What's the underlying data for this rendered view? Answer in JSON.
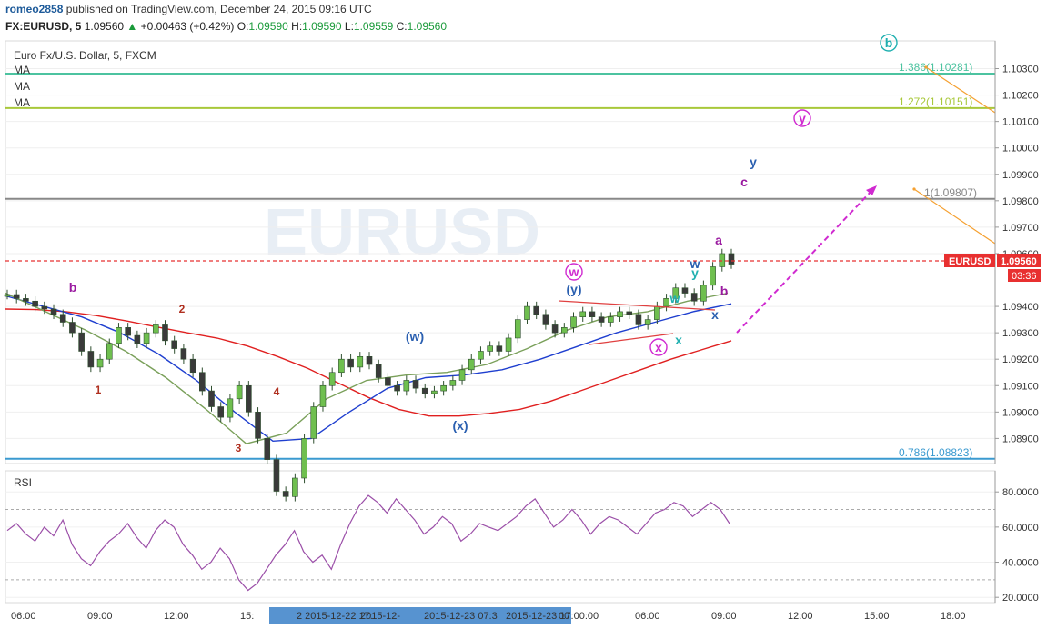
{
  "header": {
    "user": "romeo2858",
    "published": "published on TradingView.com, December 24, 2015 09:16 UTC",
    "symbol": "FX:EURUSD, 5",
    "last": "1.09560",
    "change": "+0.00463 (+0.42%)",
    "o_label": "O:",
    "o": "1.09590",
    "h_label": "H:",
    "h": "1.09590",
    "l_label": "L:",
    "l": "1.09559",
    "c_label": "C:",
    "c": "1.09560"
  },
  "chart_title": "Euro Fx/U.S. Dollar, 5, FXCM",
  "indicators": [
    "MA",
    "MA",
    "MA"
  ],
  "rsi_label": "RSI",
  "watermark": "EURUSD",
  "price_badge": {
    "symbol": "EURUSD",
    "value": "1.09560",
    "timer": "03:36"
  },
  "colors": {
    "candle": "#3b7a2a",
    "ma_red": "#e02020",
    "ma_blue": "#1f3fcf",
    "ma_green": "#7aa05a",
    "fib_teal": "#4cc3a0",
    "fib_lime": "#a8c83a",
    "fib_gray": "#888888",
    "fib_blue": "#3a9ad0",
    "rsi": "#9b4fa8",
    "magenta": "#d02ad0",
    "orange": "#f5a030",
    "wave_purple": "#9a1aa0",
    "wave_blue": "#2a5fb0",
    "wave_teal": "#20b0b0",
    "wave_red": "#b03020"
  },
  "fib_levels": [
    {
      "label": "1.386(1.10281)",
      "price": 1.10281
    },
    {
      "label": "1.272(1.10151)",
      "price": 1.10151
    },
    {
      "label": "1(1.09807)",
      "price": 1.09807
    },
    {
      "label": "0.786(1.08823)",
      "price": 1.08823
    }
  ],
  "wave_labels": [
    {
      "text": "b",
      "kind": "purple",
      "x_time": "08:00",
      "price": 1.09625
    },
    {
      "text": "2",
      "kind": "red",
      "x_time": "11:50",
      "price": 1.09335
    },
    {
      "text": "1",
      "kind": "red",
      "x_time": "08:40",
      "price": 1.09155
    },
    {
      "text": "4",
      "kind": "red",
      "x_time": "15:00",
      "price": 1.0912
    },
    {
      "text": "3",
      "kind": "red",
      "x_time": "13:50",
      "price": 1.08845
    },
    {
      "text": "(w)",
      "kind": "blue",
      "x_time": "07:40+1",
      "price": 1.0929
    },
    {
      "text": "(x)",
      "kind": "blue",
      "x_time": "06:00+1",
      "price": 1.0898
    },
    {
      "text": "(y)",
      "kind": "blue",
      "x_time": "00:00+2",
      "price": 1.0949
    },
    {
      "text": "w",
      "kind": "purple-circle",
      "x_time": "00:00+2",
      "price": 1.09525
    },
    {
      "text": "x",
      "kind": "purple-circle",
      "x_time": "06:00+2",
      "price": 1.0928
    },
    {
      "text": "w",
      "kind": "teal",
      "x_time": "06:30+2",
      "price": 1.0946
    },
    {
      "text": "x",
      "kind": "teal",
      "x_time": "06:50+2",
      "price": 1.0931
    },
    {
      "text": "y",
      "kind": "teal",
      "x_time": "07:40+2",
      "price": 1.0957
    },
    {
      "text": "w",
      "kind": "blue",
      "x_time": "07:40+2",
      "price": 1.096
    },
    {
      "text": "x",
      "kind": "blue",
      "x_time": "08:50+2",
      "price": 1.0937
    },
    {
      "text": "a",
      "kind": "purple",
      "x_time": "08:50+2",
      "price": 1.09665
    },
    {
      "text": "b",
      "kind": "purple",
      "x_time": "09:00+2",
      "price": 1.09485
    },
    {
      "text": "c",
      "kind": "purple",
      "x_time": "10:00+2",
      "price": 1.0983
    },
    {
      "text": "y",
      "kind": "blue",
      "x_time": "10:20+2",
      "price": 1.09925
    },
    {
      "text": "y",
      "kind": "purple-circle",
      "x_time": "12:00+2",
      "price": 1.1007
    },
    {
      "text": "b",
      "kind": "teal-circle",
      "x_time": "15:30+2",
      "price": 1.1039
    }
  ],
  "chart_data": {
    "type": "line",
    "title": "Euro Fx/U.S. Dollar, 5, FXCM",
    "price_axis": {
      "ticks": [
        "1.10300",
        "1.10200",
        "1.10100",
        "1.10000",
        "1.09900",
        "1.09800",
        "1.09700",
        "1.09600",
        "1.09400",
        "1.09300",
        "1.09200",
        "1.09100",
        "1.09000",
        "1.08900"
      ],
      "ylim": [
        1.08805,
        1.10405
      ]
    },
    "rsi_axis": {
      "ticks": [
        "80.0000",
        "60.0000",
        "40.0000",
        "20.0000"
      ],
      "ylim": [
        17,
        92
      ],
      "bands": [
        70,
        30
      ]
    },
    "time_axis": {
      "labels": [
        "06:00",
        "09:00",
        "12:00",
        "15:",
        "2 2015-12-22 17:",
        "2015-12-",
        "2015-12-23 07:3",
        "2015-12-23 17:00:00",
        "00",
        "06:00",
        "09:00",
        "12:00",
        "15:00",
        "18:00"
      ]
    },
    "price_series": [
      1.09445,
      1.0943,
      1.0942,
      1.094,
      1.0939,
      1.0937,
      1.0934,
      1.093,
      1.0923,
      1.0917,
      1.092,
      1.0926,
      1.0932,
      1.0929,
      1.0926,
      1.093,
      1.0933,
      1.0927,
      1.0924,
      1.092,
      1.0915,
      1.0908,
      1.0902,
      1.0898,
      1.0905,
      1.091,
      1.09,
      1.089,
      1.0882,
      1.087,
      1.0868,
      1.0875,
      1.089,
      1.0902,
      1.091,
      1.0915,
      1.092,
      1.0917,
      1.0921,
      1.0918,
      1.0913,
      1.091,
      1.0908,
      1.0912,
      1.0909,
      1.0907,
      1.0908,
      1.091,
      1.0912,
      1.0916,
      1.092,
      1.0923,
      1.0925,
      1.0923,
      1.0928,
      1.0935,
      1.094,
      1.0937,
      1.0933,
      1.093,
      1.0932,
      1.0936,
      1.0938,
      1.0936,
      1.0934,
      1.0936,
      1.0938,
      1.0937,
      1.0933,
      1.0935,
      1.094,
      1.0943,
      1.0947,
      1.0945,
      1.0942,
      1.0948,
      1.0955,
      1.096,
      1.0956
    ],
    "rsi_series": [
      58,
      62,
      56,
      52,
      60,
      55,
      64,
      50,
      42,
      38,
      46,
      52,
      56,
      62,
      54,
      48,
      58,
      64,
      60,
      50,
      44,
      36,
      40,
      48,
      42,
      30,
      24,
      28,
      36,
      44,
      50,
      58,
      46,
      40,
      44,
      36,
      50,
      62,
      72,
      78,
      74,
      68,
      76,
      70,
      64,
      56,
      60,
      66,
      62,
      52,
      56,
      62,
      60,
      58,
      62,
      66,
      72,
      76,
      68,
      60,
      64,
      70,
      64,
      56,
      62,
      66,
      64,
      60,
      56,
      62,
      68,
      70,
      74,
      72,
      66,
      70,
      74,
      70,
      62
    ],
    "ma_red": [
      1.0939,
      1.09388,
      1.0938,
      1.09365,
      1.09345,
      1.09322,
      1.093,
      1.0928,
      1.0925,
      1.0921,
      1.09165,
      1.0911,
      1.09055,
      1.0901,
      1.08985,
      1.08985,
      1.08995,
      1.0901,
      1.0904,
      1.0908,
      1.0912,
      1.0916,
      1.092,
      1.09235,
      1.0927
    ],
    "ma_blue": [
      1.0944,
      1.094,
      1.0936,
      1.093,
      1.0922,
      1.0912,
      1.09,
      1.0889,
      1.089,
      1.09,
      1.0909,
      1.0913,
      1.0914,
      1.0916,
      1.092,
      1.0925,
      1.093,
      1.0934,
      1.0938,
      1.0941
    ],
    "ma_green": [
      1.0945,
      1.0938,
      1.0931,
      1.0923,
      1.0913,
      1.0901,
      1.0888,
      1.0892,
      1.0905,
      1.0912,
      1.0914,
      1.0915,
      1.0918,
      1.0924,
      1.0931,
      1.0936,
      1.0938,
      1.0942,
      1.0945
    ]
  }
}
